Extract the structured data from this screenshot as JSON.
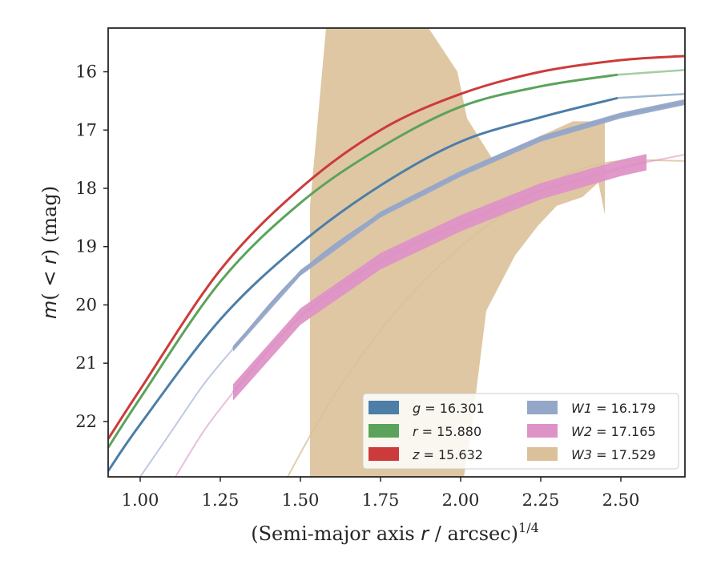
{
  "chart_data": {
    "type": "line",
    "xlabel": "(Semi-major axis r / arcsec)",
    "xlabel_italic": "r",
    "xlabel_exponent": "1/4",
    "ylabel": "m(<r) (mag)",
    "xlim": [
      0.9,
      2.7
    ],
    "ylim": [
      22.95,
      15.25
    ],
    "y_inverted": true,
    "xticks": [
      1.0,
      1.25,
      1.5,
      1.75,
      2.0,
      2.25,
      2.5
    ],
    "xtick_labels": [
      "1.00",
      "1.25",
      "1.50",
      "1.75",
      "2.00",
      "2.25",
      "2.50"
    ],
    "yticks": [
      16,
      17,
      18,
      19,
      20,
      21,
      22
    ],
    "ytick_labels": [
      "16",
      "17",
      "18",
      "19",
      "20",
      "21",
      "22"
    ],
    "grid": false,
    "legend_position": "lower-right",
    "legend": [
      {
        "band": "g",
        "value": "16.301",
        "color": "#4c7ea8"
      },
      {
        "band": "r",
        "value": "15.880",
        "color": "#5ba35b"
      },
      {
        "band": "z",
        "value": "15.632",
        "color": "#cc3b3b"
      },
      {
        "band": "W1",
        "value": "16.179",
        "color": "#95a7c9"
      },
      {
        "band": "W2",
        "value": "17.165",
        "color": "#de93c6"
      },
      {
        "band": "W3",
        "value": "17.529",
        "color": "#dbc199"
      }
    ],
    "series": [
      {
        "name": "g",
        "color": "#4c7ea8",
        "data_x": [
          0.9,
          1.0,
          1.25,
          1.5,
          1.75,
          2.0,
          2.25,
          2.49
        ],
        "data_y": [
          22.85,
          22.05,
          20.25,
          18.95,
          17.95,
          17.2,
          16.78,
          16.45
        ],
        "model_x": [
          2.49,
          2.7
        ],
        "model_y": [
          16.45,
          16.38
        ]
      },
      {
        "name": "r",
        "color": "#5ba35b",
        "data_x": [
          0.9,
          1.0,
          1.25,
          1.5,
          1.75,
          2.0,
          2.25,
          2.49
        ],
        "data_y": [
          22.45,
          21.6,
          19.6,
          18.25,
          17.3,
          16.6,
          16.25,
          16.05
        ],
        "model_x": [
          2.49,
          2.7
        ],
        "model_y": [
          16.05,
          15.97
        ]
      },
      {
        "name": "z",
        "color": "#cc3b3b",
        "data_x": [
          0.9,
          1.0,
          1.25,
          1.5,
          1.75,
          2.0,
          2.25,
          2.5,
          2.7
        ],
        "data_y": [
          22.3,
          21.45,
          19.4,
          18.0,
          17.0,
          16.38,
          16.0,
          15.8,
          15.73
        ]
      },
      {
        "name": "W1",
        "color": "#95a7c9",
        "model_x": [
          1.0,
          1.1,
          1.2,
          1.29
        ],
        "model_y": [
          22.95,
          22.15,
          21.35,
          20.75
        ],
        "data_x": [
          1.29,
          1.5,
          1.75,
          2.0,
          2.25,
          2.5,
          2.7
        ],
        "data_y": [
          20.75,
          19.45,
          18.45,
          17.75,
          17.15,
          16.75,
          16.52
        ],
        "band_halfwidth": 0.05
      },
      {
        "name": "W2",
        "color": "#de93c6",
        "model_x": [
          1.11,
          1.2,
          1.29
        ],
        "model_y": [
          22.95,
          22.15,
          21.5
        ],
        "data_x": [
          1.29,
          1.5,
          1.75,
          2.0,
          2.25,
          2.5,
          2.58
        ],
        "data_y": [
          21.5,
          20.2,
          19.25,
          18.6,
          18.05,
          17.65,
          17.55
        ],
        "band_halfwidth": 0.14,
        "model_tail_x": [
          2.58,
          2.7
        ],
        "model_tail_y": [
          17.55,
          17.42
        ]
      },
      {
        "name": "W3",
        "color": "#dbc199",
        "model_x": [
          1.46,
          1.6,
          1.8,
          2.0,
          2.2,
          2.35,
          2.5,
          2.7
        ],
        "model_y": [
          22.95,
          21.6,
          20.1,
          19.0,
          18.2,
          17.72,
          17.53,
          17.53
        ],
        "fill_upper_x": [
          1.53,
          1.58,
          1.9,
          1.99,
          2.02,
          2.1,
          2.17,
          2.25,
          2.35,
          2.4,
          2.44,
          2.45
        ],
        "fill_upper_y": [
          18.3,
          15.25,
          15.25,
          16.0,
          16.8,
          17.5,
          17.3,
          17.1,
          16.85,
          16.85,
          16.85,
          16.85
        ],
        "fill_lower_x": [
          1.53,
          2.01,
          2.03,
          2.08,
          2.17,
          2.24,
          2.3,
          2.38,
          2.43,
          2.45
        ],
        "fill_lower_y": [
          22.95,
          22.95,
          22.3,
          20.1,
          19.15,
          18.65,
          18.3,
          18.15,
          17.9,
          18.45
        ]
      }
    ]
  }
}
